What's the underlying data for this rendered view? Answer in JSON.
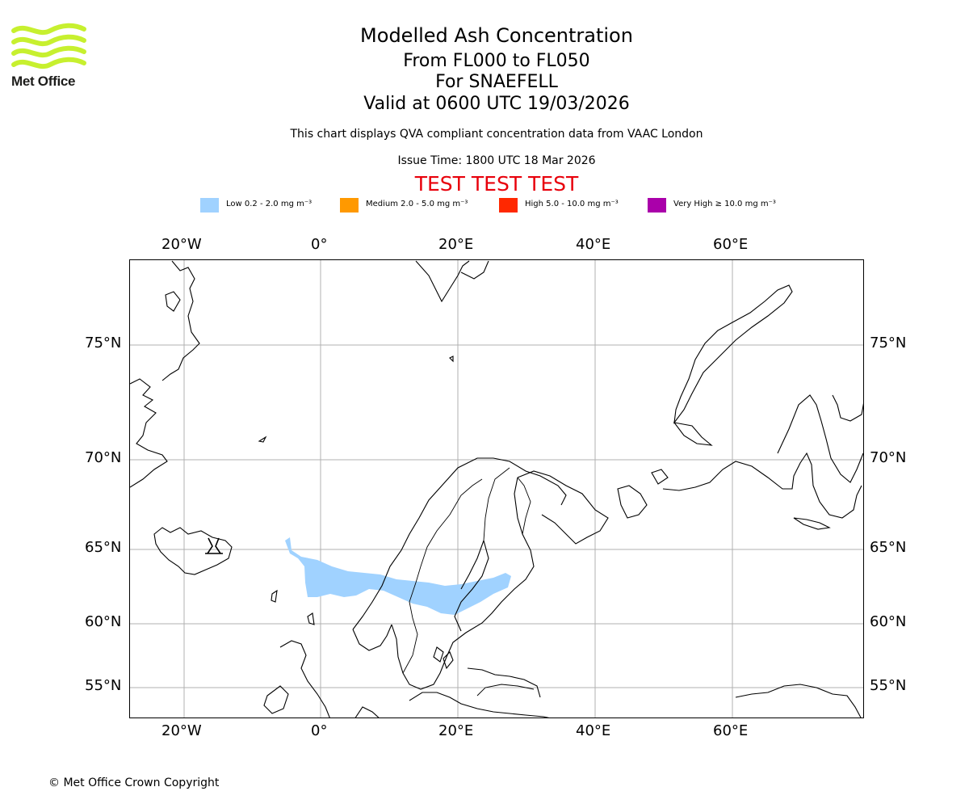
{
  "logo": {
    "text": "Met Office",
    "color": "#c7f02f"
  },
  "titles": {
    "main": "Modelled Ash Concentration",
    "levels": "From FL000 to FL050",
    "volcano": "For SNAEFELL",
    "valid": "Valid at 0600 UTC 19/03/2026",
    "description": "This chart displays QVA compliant concentration data from VAAC London",
    "issue": "Issue Time: 1800 UTC 18 Mar 2026",
    "test_banner": "TEST TEST TEST"
  },
  "legend": [
    {
      "label": "Low 0.2 - 2.0 mg m⁻³",
      "color": "#a0d2ff"
    },
    {
      "label": "Medium 2.0 - 5.0 mg m⁻³",
      "color": "#ff9900"
    },
    {
      "label": "High 5.0 - 10.0 mg m⁻³",
      "color": "#ff2800"
    },
    {
      "label": "Very High  ≥  10.0 mg m⁻³",
      "color": "#aa00aa"
    }
  ],
  "map": {
    "lon_ticks": [
      "20°W",
      "0°",
      "20°E",
      "40°E",
      "60°E"
    ],
    "lat_ticks": [
      "75°N",
      "70°N",
      "65°N",
      "60°N",
      "55°N"
    ],
    "gridline_color": "#b0b0b0",
    "ash_color": "#a0d2ff",
    "volcano_symbol": "volcano-icon"
  },
  "copyright": "© Met Office Crown Copyright"
}
